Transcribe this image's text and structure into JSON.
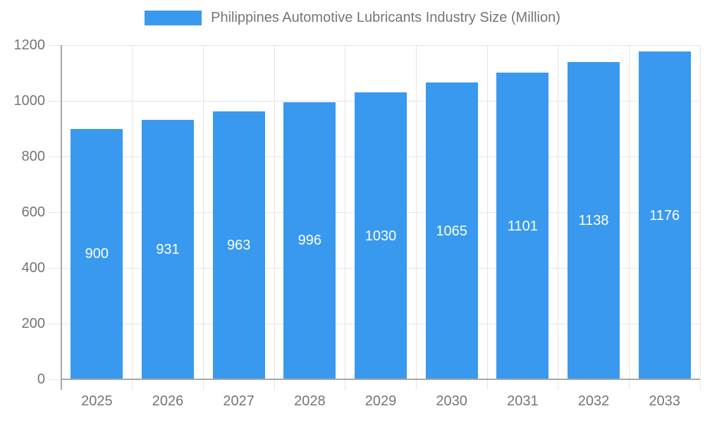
{
  "colors": {
    "bar": "#3899EE",
    "grid": "#E5E5E5",
    "axis": "#A8A8A8",
    "tick_text": "#757575",
    "bar_label_text": "#FFFFFF",
    "background": "#FFFFFF"
  },
  "legend": {
    "label": "Philippines Automotive Lubricants Industry Size (Million)"
  },
  "chart_data": {
    "type": "bar",
    "title": "Philippines Automotive Lubricants Industry Size (Million)",
    "categories": [
      "2025",
      "2026",
      "2027",
      "2028",
      "2029",
      "2030",
      "2031",
      "2032",
      "2033"
    ],
    "values": [
      900,
      931,
      963,
      996,
      1030,
      1065,
      1101,
      1138,
      1176
    ],
    "xlabel": "",
    "ylabel": "",
    "ylim": [
      0,
      1200
    ],
    "yticks": [
      0,
      200,
      400,
      600,
      800,
      1000,
      1200
    ],
    "grid": true,
    "legend_position": "top",
    "bar_label_position": "inside-center"
  }
}
